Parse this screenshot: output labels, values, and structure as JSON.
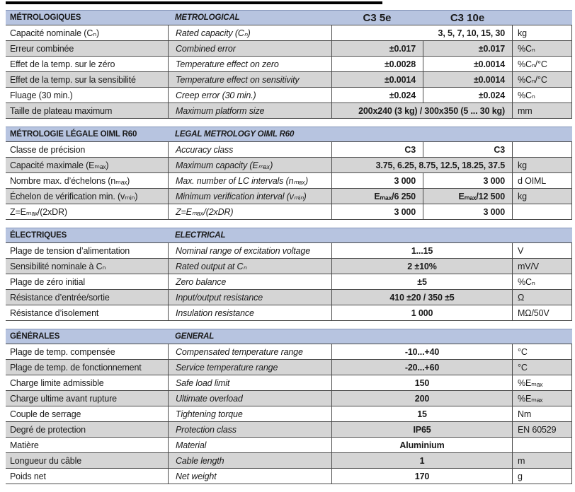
{
  "colors": {
    "section_header_bg": "#b7c4e0",
    "alt_row_bg": "#d5d5d5",
    "border": "#4a4a4a"
  },
  "models": {
    "col1": "C3 5e",
    "col2": "C3 10e"
  },
  "sections": [
    {
      "name": "metrological",
      "header": {
        "fr": "MÉTROLOGIQUES",
        "en": "METROLOGICAL",
        "col1": "C3 5e",
        "col2": "C3 10e"
      },
      "rows": [
        {
          "fr": "Capacité nominale (Cₙ)",
          "en": "Rated capacity (Cₙ)",
          "merged": "3, 5, 7, 10, 15, 30",
          "merge_align": "right",
          "unit": "kg"
        },
        {
          "fr": "Erreur combinée",
          "en": "Combined error",
          "v1": "±0.017",
          "v2": "±0.017",
          "unit": "%Cₙ"
        },
        {
          "fr": "Effet de la temp. sur le zéro",
          "en": "Temperature effect on zero",
          "v1": "±0.0028",
          "v2": "±0.0014",
          "unit": "%Cₙ/°C"
        },
        {
          "fr": "Effet de la temp. sur la sensibilité",
          "en": "Temperature effect on sensitivity",
          "v1": "±0.0014",
          "v2": "±0.0014",
          "unit": "%Cₙ/°C"
        },
        {
          "fr": "Fluage (30 min.)",
          "en": "Creep error (30 min.)",
          "v1": "±0.024",
          "v2": "±0.024",
          "unit": "%Cₙ"
        },
        {
          "fr": "Taille de plateau maximum",
          "en": "Maximum platform size",
          "merged": "200x240 (3 kg) / 300x350 (5 ... 30 kg)",
          "merge_align": "right",
          "unit": "mm"
        }
      ]
    },
    {
      "name": "legal-metrology",
      "header": {
        "fr": "MÉTROLOGIE LÉGALE OIML R60",
        "en": "LEGAL METROLOGY OIML R60",
        "col1": "",
        "col2": ""
      },
      "rows": [
        {
          "fr": "Classe de précision",
          "en": "Accuracy class",
          "v1": "C3",
          "v2": "C3",
          "unit": ""
        },
        {
          "fr": "Capacité maximale (Eₘₐₓ)",
          "en": "Maximum capacity (Eₘₐₓ)",
          "merged": "3.75, 6.25, 8.75, 12.5, 18.25, 37.5",
          "merge_align": "right",
          "unit": "kg"
        },
        {
          "fr": "Nombre max. d’échelons (nₘₐₓ)",
          "en": "Max. number of LC intervals (nₘₐₓ)",
          "v1": "3 000",
          "v2": "3 000",
          "unit": "d OIML"
        },
        {
          "fr": "Échelon de vérification min. (vₘᵢₙ)",
          "en": "Minimum verification interval (vₘᵢₙ)",
          "v1": "Eₘₐₓ/6 250",
          "v2": "Eₘₐₓ/12 500",
          "unit": "kg"
        },
        {
          "fr": "Z=Eₘₐₓ/(2xDR)",
          "en": "Z=Eₘₐₓ/(2xDR)",
          "v1": "3 000",
          "v2": "3 000",
          "unit": ""
        }
      ]
    },
    {
      "name": "electrical",
      "header": {
        "fr": "ÉLECTRIQUES",
        "en": "ELECTRICAL",
        "col1": "",
        "col2": ""
      },
      "rows": [
        {
          "fr": "Plage de tension d’alimentation",
          "en": "Nominal range of excitation voltage",
          "merged": "1...15",
          "merge_align": "center",
          "unit": "V"
        },
        {
          "fr": "Sensibilité nominale à Cₙ",
          "en": "Rated output at Cₙ",
          "merged": "2 ±10%",
          "merge_align": "center",
          "unit": "mV/V"
        },
        {
          "fr": "Plage de zéro initial",
          "en": "Zero balance",
          "merged": "±5",
          "merge_align": "center",
          "unit": "%Cₙ"
        },
        {
          "fr": "Résistance d’entrée/sortie",
          "en": "Input/output resistance",
          "merged": "410 ±20 / 350 ±5",
          "merge_align": "center",
          "unit": "Ω"
        },
        {
          "fr": "Résistance d’isolement",
          "en": "Insulation resistance",
          "merged": "1 000",
          "merge_align": "center",
          "unit": "MΩ/50V"
        }
      ]
    },
    {
      "name": "general",
      "header": {
        "fr": "GÉNÉRALES",
        "en": "GENERAL",
        "col1": "",
        "col2": ""
      },
      "rows": [
        {
          "fr": "Plage de temp. compensée",
          "en": "Compensated temperature range",
          "merged": "-10...+40",
          "merge_align": "center",
          "unit": "°C"
        },
        {
          "fr": "Plage de temp. de fonctionnement",
          "en": "Service temperature range",
          "merged": "-20...+60",
          "merge_align": "center",
          "unit": "°C"
        },
        {
          "fr": "Charge limite admissible",
          "en": "Safe load limit",
          "merged": "150",
          "merge_align": "center",
          "unit": "%Eₘₐₓ"
        },
        {
          "fr": "Charge ultime avant rupture",
          "en": "Ultimate overload",
          "merged": "200",
          "merge_align": "center",
          "unit": "%Eₘₐₓ"
        },
        {
          "fr": "Couple de serrage",
          "en": "Tightening torque",
          "merged": "15",
          "merge_align": "center",
          "unit": "Nm"
        },
        {
          "fr": "Degré de protection",
          "en": "Protection class",
          "merged": "IP65",
          "merge_align": "center",
          "unit": "EN 60529"
        },
        {
          "fr": "Matière",
          "en": "Material",
          "merged": "Aluminium",
          "merge_align": "center",
          "unit": ""
        },
        {
          "fr": "Longueur du câble",
          "en": "Cable length",
          "merged": "1",
          "merge_align": "center",
          "unit": "m"
        },
        {
          "fr": "Poids net",
          "en": "Net weight",
          "merged": "170",
          "merge_align": "center",
          "unit": "g"
        }
      ]
    }
  ]
}
